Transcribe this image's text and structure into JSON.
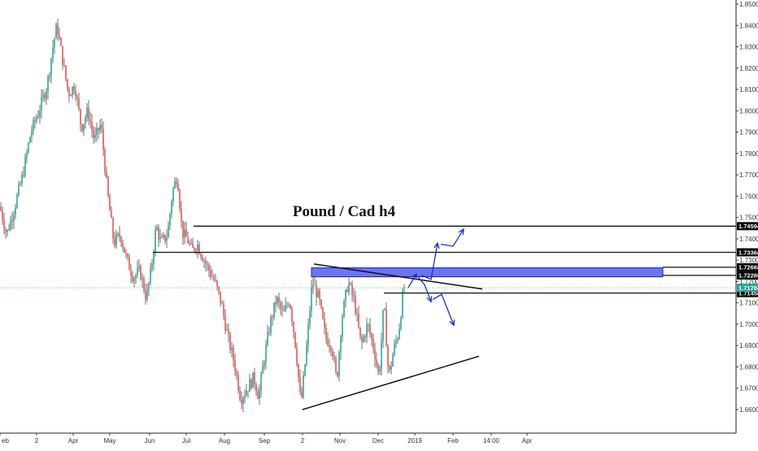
{
  "chart_data": {
    "type": "candlestick",
    "title": "Pound / Cad h4",
    "colors": {
      "up": "#26a69a",
      "down": "#ef5350",
      "wick": "#333333",
      "level_line": "#111111",
      "zone_fill": "#6b74f5",
      "zone_border": "#1b1b9e",
      "arrow": "#1a2fd1",
      "current_price_line": "#4db6ac",
      "current_price_tag": "#26a69a",
      "level_tag": "#000000",
      "grid": "#ffffff"
    },
    "grid": false,
    "y_axis": {
      "position": "right",
      "min": 1.655,
      "max": 1.851,
      "ticks": [
        "1.66000",
        "1.67000",
        "1.68000",
        "1.69000",
        "1.70000",
        "1.71000",
        "1.72000",
        "1.73000",
        "1.74000",
        "1.75000",
        "1.76000",
        "1.77000",
        "1.78000",
        "1.79000",
        "1.80000",
        "1.81000",
        "1.82000",
        "1.83000",
        "1.84000",
        "1.85000"
      ]
    },
    "x_axis": {
      "ticks": [
        {
          "label": "eb",
          "t": 0
        },
        {
          "label": "2",
          "t": 45
        },
        {
          "label": "Apr",
          "t": 90
        },
        {
          "label": "May",
          "t": 135
        },
        {
          "label": "Jun",
          "t": 184
        },
        {
          "label": "Jul",
          "t": 229
        },
        {
          "label": "Aug",
          "t": 276
        },
        {
          "label": "Sep",
          "t": 325
        },
        {
          "label": "2",
          "t": 372
        },
        {
          "label": "Nov",
          "t": 418
        },
        {
          "label": "Dec",
          "t": 465
        },
        {
          "label": "2019",
          "t": 510
        },
        {
          "label": "Feb",
          "t": 557
        },
        {
          "label": "14:00",
          "t": 604
        },
        {
          "label": "Apr",
          "t": 648
        }
      ]
    },
    "price_path": [
      [
        0,
        1.755
      ],
      [
        8,
        1.742
      ],
      [
        18,
        1.755
      ],
      [
        28,
        1.77
      ],
      [
        38,
        1.79
      ],
      [
        48,
        1.8
      ],
      [
        58,
        1.812
      ],
      [
        65,
        1.83
      ],
      [
        70,
        1.84
      ],
      [
        76,
        1.826
      ],
      [
        84,
        1.808
      ],
      [
        92,
        1.812
      ],
      [
        100,
        1.792
      ],
      [
        108,
        1.8
      ],
      [
        116,
        1.786
      ],
      [
        124,
        1.794
      ],
      [
        132,
        1.762
      ],
      [
        140,
        1.738
      ],
      [
        148,
        1.742
      ],
      [
        156,
        1.73
      ],
      [
        164,
        1.722
      ],
      [
        172,
        1.725
      ],
      [
        180,
        1.712
      ],
      [
        186,
        1.726
      ],
      [
        192,
        1.746
      ],
      [
        198,
        1.738
      ],
      [
        206,
        1.742
      ],
      [
        212,
        1.762
      ],
      [
        218,
        1.77
      ],
      [
        224,
        1.743
      ],
      [
        230,
        1.74
      ],
      [
        236,
        1.734
      ],
      [
        242,
        1.738
      ],
      [
        250,
        1.731
      ],
      [
        256,
        1.726
      ],
      [
        264,
        1.72
      ],
      [
        272,
        1.71
      ],
      [
        280,
        1.694
      ],
      [
        288,
        1.682
      ],
      [
        296,
        1.665
      ],
      [
        304,
        1.67
      ],
      [
        312,
        1.675
      ],
      [
        318,
        1.666
      ],
      [
        324,
        1.682
      ],
      [
        332,
        1.7
      ],
      [
        340,
        1.712
      ],
      [
        348,
        1.704
      ],
      [
        356,
        1.712
      ],
      [
        364,
        1.688
      ],
      [
        370,
        1.662
      ],
      [
        376,
        1.685
      ],
      [
        384,
        1.72
      ],
      [
        392,
        1.712
      ],
      [
        400,
        1.694
      ],
      [
        408,
        1.69
      ],
      [
        414,
        1.673
      ],
      [
        420,
        1.702
      ],
      [
        428,
        1.72
      ],
      [
        436,
        1.71
      ],
      [
        444,
        1.69
      ],
      [
        452,
        1.7
      ],
      [
        460,
        1.688
      ],
      [
        466,
        1.675
      ],
      [
        472,
        1.71
      ],
      [
        478,
        1.675
      ],
      [
        484,
        1.688
      ],
      [
        490,
        1.696
      ],
      [
        496,
        1.716
      ]
    ],
    "levels": [
      {
        "value": 1.74594,
        "label": "1.74594",
        "t_start": 238,
        "t_end": 905
      },
      {
        "value": 1.73368,
        "label": "1.73368",
        "t_start": 188,
        "t_end": 905
      },
      {
        "value": 1.72668,
        "label": "1.72668",
        "t_start": 815,
        "t_end": 905
      },
      {
        "value": 1.72286,
        "label": "1.72286",
        "t_start": 815,
        "t_end": 905
      },
      {
        "value": 1.71458,
        "label": "1.71458",
        "t_start": 472,
        "t_end": 905
      }
    ],
    "current_price": {
      "value": 1.71704,
      "label": "1.71704"
    },
    "zone": {
      "t_start": 383,
      "t_end": 815,
      "top": 1.7264,
      "bottom": 1.7222
    },
    "trendlines": [
      {
        "t1": 386,
        "y1": 1.7282,
        "t2": 593,
        "y2": 1.7165
      },
      {
        "t1": 372,
        "y1": 1.66,
        "t2": 589,
        "y2": 1.685
      }
    ],
    "arrows": [
      {
        "points": [
          [
            502,
            1.7172
          ],
          [
            512,
            1.7235
          ]
        ],
        "head": true
      },
      {
        "points": [
          [
            518,
            1.723
          ],
          [
            530,
            1.721
          ],
          [
            538,
            1.738
          ]
        ],
        "head": true
      },
      {
        "points": [
          [
            542,
            1.7375
          ],
          [
            557,
            1.7365
          ],
          [
            570,
            1.7445
          ]
        ],
        "head": true
      },
      {
        "points": [
          [
            512,
            1.723
          ],
          [
            522,
            1.7185
          ],
          [
            530,
            1.7105
          ]
        ],
        "head": true
      },
      {
        "points": [
          [
            532,
            1.7115
          ],
          [
            543,
            1.714
          ],
          [
            558,
            1.6995
          ]
        ],
        "head": true
      }
    ]
  }
}
